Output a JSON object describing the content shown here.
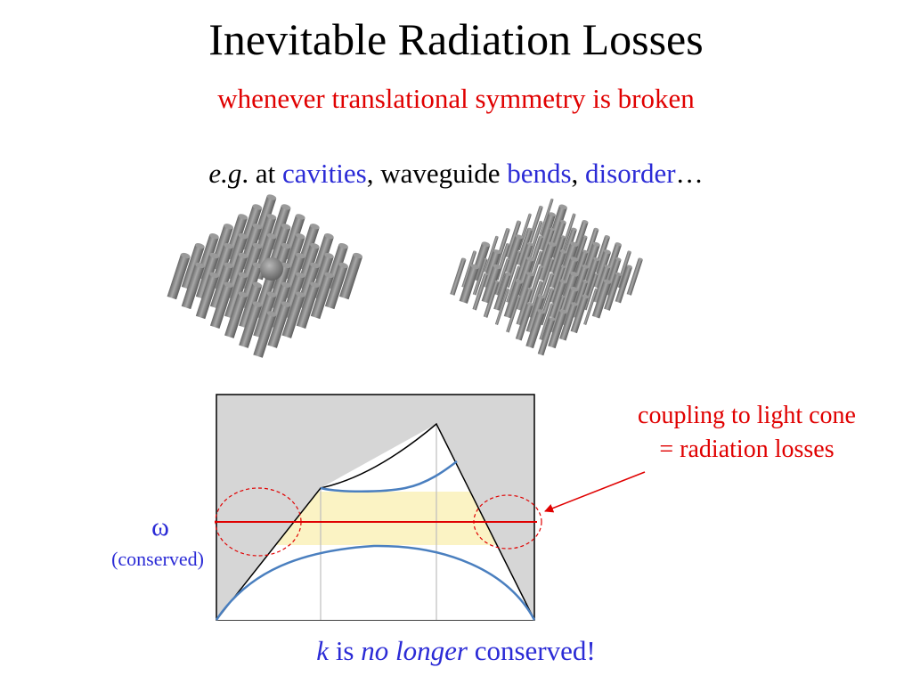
{
  "title": "Inevitable Radiation Losses",
  "subtitle": "whenever translational symmetry is broken",
  "examples": {
    "eg": "e.g",
    "at": ". at ",
    "cavities": "cavities",
    "waveguide": ", waveguide ",
    "bends": "bends",
    "comma": ", ",
    "disorder": "disorder",
    "ellipsis": "…"
  },
  "omega": "ω",
  "omega_note": "(conserved)",
  "coupling": {
    "line1": "coupling to light cone",
    "line2": "= radiation losses"
  },
  "k_statement": {
    "k": "k",
    "is": " is ",
    "no_longer": "no longer",
    "rest": " conserved!"
  },
  "colors": {
    "red": "#e00000",
    "blue": "#2b2bd6",
    "band_curve": "#4a7fbf",
    "gray_fill": "#d6d6d6",
    "highlight": "#fbf3c4"
  }
}
